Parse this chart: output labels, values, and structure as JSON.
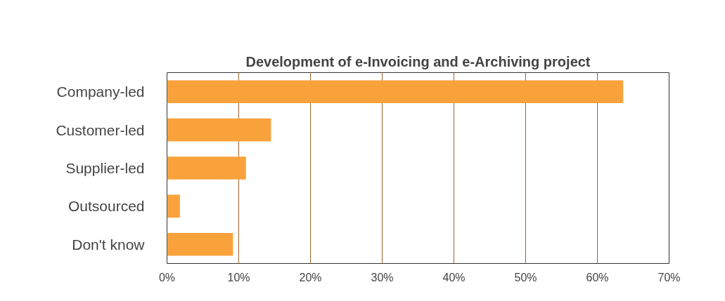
{
  "chart_data": {
    "type": "bar",
    "orientation": "horizontal",
    "title": "Development of e-Invoicing and e-Archiving project",
    "categories": [
      "Company-led",
      "Customer-led",
      "Supplier-led",
      "Outsourced",
      "Don't know"
    ],
    "values": [
      63.6,
      14.5,
      11.0,
      1.8,
      9.2
    ],
    "color": "#f9a23c",
    "xlim": [
      0,
      70
    ],
    "xticks": [
      {
        "value": 0,
        "label": "0%"
      },
      {
        "value": 10,
        "label": "10%"
      },
      {
        "value": 20,
        "label": "20%"
      },
      {
        "value": 30,
        "label": "30%"
      },
      {
        "value": 40,
        "label": "40%"
      },
      {
        "value": 50,
        "label": "50%"
      },
      {
        "value": 60,
        "label": "60%"
      },
      {
        "value": 70,
        "label": "70%"
      }
    ],
    "grid": "x"
  }
}
